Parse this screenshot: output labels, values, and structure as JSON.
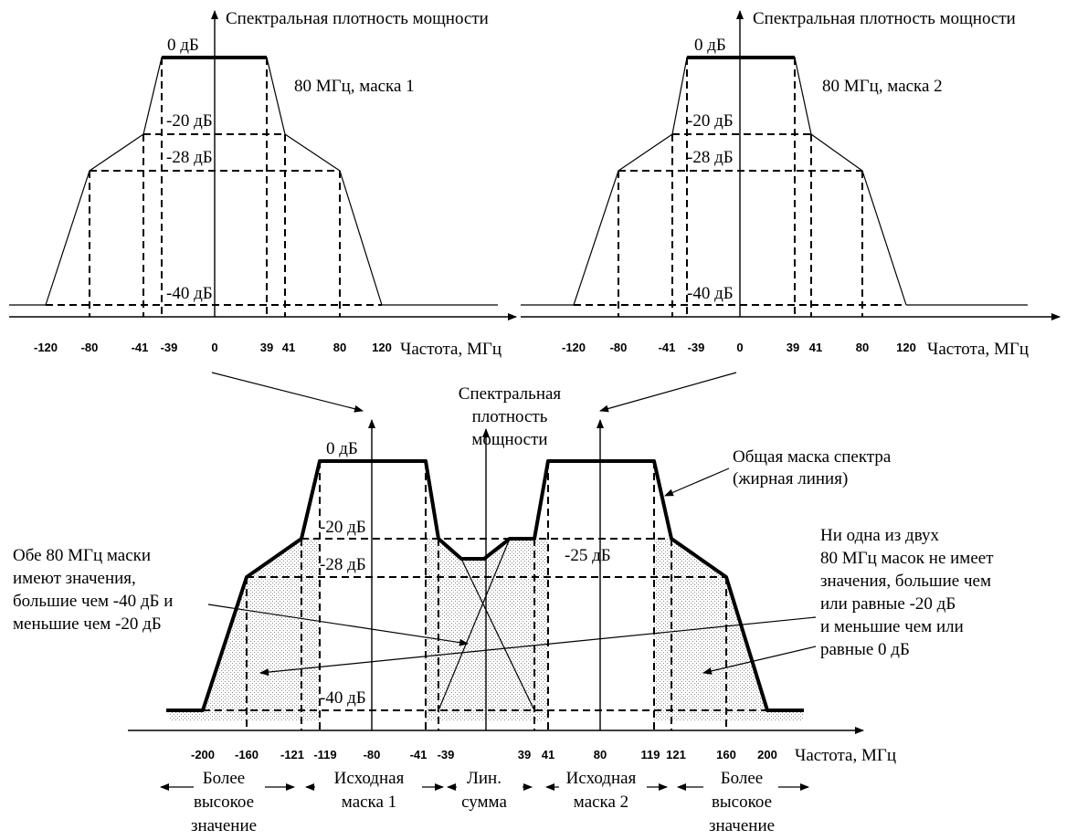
{
  "top_left": {
    "y_axis_label": "Спектральная плотность мощности",
    "x_axis_label": "Частота, МГц",
    "mask_label": "80 МГц, маска 1",
    "db_labels": [
      "0 дБ",
      "-20 дБ",
      "-28 дБ",
      "-40 дБ"
    ],
    "ticks": [
      "-120",
      "-80",
      "-41",
      "-39",
      "0",
      "39",
      "41",
      "80",
      "120"
    ]
  },
  "top_right": {
    "y_axis_label": "Спектральная плотность мощности",
    "x_axis_label": "Частота, МГц",
    "mask_label": "80 МГц, маска 2",
    "db_labels": [
      "0 дБ",
      "-20 дБ",
      "-28 дБ",
      "-40 дБ"
    ],
    "ticks": [
      "-120",
      "-80",
      "-41",
      "-39",
      "0",
      "39",
      "41",
      "80",
      "120"
    ]
  },
  "bottom": {
    "y_axis_label_lines": [
      "Спектральная",
      "плотность",
      "мощности"
    ],
    "x_axis_label": "Частота, МГц",
    "db_labels": [
      "0 дБ",
      "-20 дБ",
      "-28 дБ",
      "-40 дБ",
      "-25 дБ"
    ],
    "ticks": [
      "-200",
      "-160",
      "-121",
      "-119",
      "-80",
      "-41",
      "-39",
      "39",
      "41",
      "80",
      "119",
      "121",
      "160",
      "200"
    ],
    "note_left_lines": [
      "Обе 80 МГц маски",
      "имеют значения,",
      "большие чем -40 дБ и",
      "меньшие чем -20 дБ"
    ],
    "note_right_lines": [
      "Ни одна из двух",
      "80 МГц масок не имеет",
      "значения, большие чем",
      "или равные -20 дБ",
      "и меньшие чем или",
      "равные 0 дБ"
    ],
    "note_total_lines": [
      "Общая маска спектра",
      "(жирная линия)"
    ],
    "regions": [
      {
        "lines": [
          "Более",
          "высокое",
          "значение"
        ]
      },
      {
        "lines": [
          "Исходная",
          "маска 1"
        ]
      },
      {
        "lines": [
          "Лин.",
          "сумма"
        ]
      },
      {
        "lines": [
          "Исходная",
          "маска 2"
        ]
      },
      {
        "lines": [
          "Более",
          "высокое",
          "значение"
        ]
      }
    ]
  }
}
